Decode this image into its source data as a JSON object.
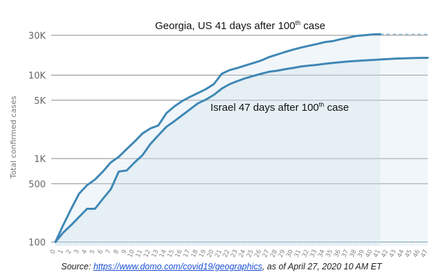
{
  "chart_data": {
    "type": "line",
    "title": "",
    "xlabel": "",
    "ylabel": "Total confirmed cases",
    "yscale": "log",
    "ylim": [
      90,
      40000
    ],
    "xlim": [
      0,
      47
    ],
    "y_ticks": [
      {
        "value": 100,
        "label": "100"
      },
      {
        "value": 500,
        "label": "500"
      },
      {
        "value": 1000,
        "label": "1K"
      },
      {
        "value": 5000,
        "label": "5K"
      },
      {
        "value": 10000,
        "label": "10K"
      },
      {
        "value": 30000,
        "label": "30K"
      }
    ],
    "x_ticks": [
      "0",
      "1",
      "2",
      "3",
      "4",
      "5",
      "6",
      "7",
      "8",
      "9",
      "10",
      "11",
      "12",
      "13",
      "14",
      "15",
      "16",
      "17",
      "18",
      "19",
      "20",
      "21",
      "22",
      "23",
      "24",
      "25",
      "26",
      "27",
      "28",
      "29",
      "30",
      "31",
      "32",
      "33",
      "34",
      "35",
      "36",
      "37",
      "38",
      "39",
      "40",
      "41",
      "42",
      "43",
      "44",
      "45",
      "46",
      "47"
    ],
    "grid": true,
    "series": [
      {
        "name": "Georgia, US",
        "color": "#3f87b5",
        "x": [
          0,
          1,
          2,
          3,
          4,
          5,
          6,
          7,
          8,
          9,
          10,
          11,
          12,
          13,
          14,
          15,
          16,
          17,
          18,
          19,
          20,
          21,
          22,
          23,
          24,
          25,
          26,
          27,
          28,
          29,
          30,
          31,
          32,
          33,
          34,
          35,
          36,
          37,
          38,
          39,
          40,
          41
        ],
        "y": [
          100,
          160,
          250,
          380,
          480,
          560,
          700,
          900,
          1050,
          1300,
          1600,
          2000,
          2300,
          2500,
          3500,
          4200,
          4900,
          5500,
          6100,
          6800,
          7800,
          10400,
          11500,
          12200,
          13100,
          14000,
          15000,
          16500,
          17700,
          19000,
          20200,
          21400,
          22500,
          23600,
          24900,
          25600,
          27000,
          28200,
          29500,
          30100,
          30800,
          31000
        ]
      },
      {
        "name": "Israel",
        "color": "#3f87b5",
        "x": [
          0,
          1,
          2,
          3,
          4,
          5,
          6,
          7,
          8,
          9,
          10,
          11,
          12,
          13,
          14,
          15,
          16,
          17,
          18,
          19,
          20,
          21,
          22,
          23,
          24,
          25,
          26,
          27,
          28,
          29,
          30,
          31,
          32,
          33,
          34,
          35,
          36,
          37,
          38,
          39,
          40,
          41,
          42,
          43,
          44,
          45,
          46,
          47
        ],
        "y": [
          100,
          130,
          160,
          200,
          250,
          250,
          330,
          430,
          700,
          720,
          900,
          1100,
          1500,
          1900,
          2400,
          2800,
          3300,
          3900,
          4600,
          5100,
          5800,
          6900,
          7800,
          8500,
          9200,
          9800,
          10400,
          11000,
          11300,
          11800,
          12200,
          12700,
          13000,
          13300,
          13700,
          14000,
          14300,
          14600,
          14800,
          15000,
          15200,
          15400,
          15600,
          15800,
          15900,
          16000,
          16100,
          16150
        ]
      }
    ],
    "annotations": [
      {
        "pre": "Georgia, US 41 days after 100",
        "sup": "th",
        "post": " case"
      },
      {
        "pre": "Israel 47 days after 100",
        "sup": "th",
        "post": " case"
      }
    ]
  },
  "source": {
    "label": "Source:",
    "url": "https://www.domo.com/covid19/geographics",
    "suffix": ", as of April 27, 2020 10 AM ET"
  }
}
